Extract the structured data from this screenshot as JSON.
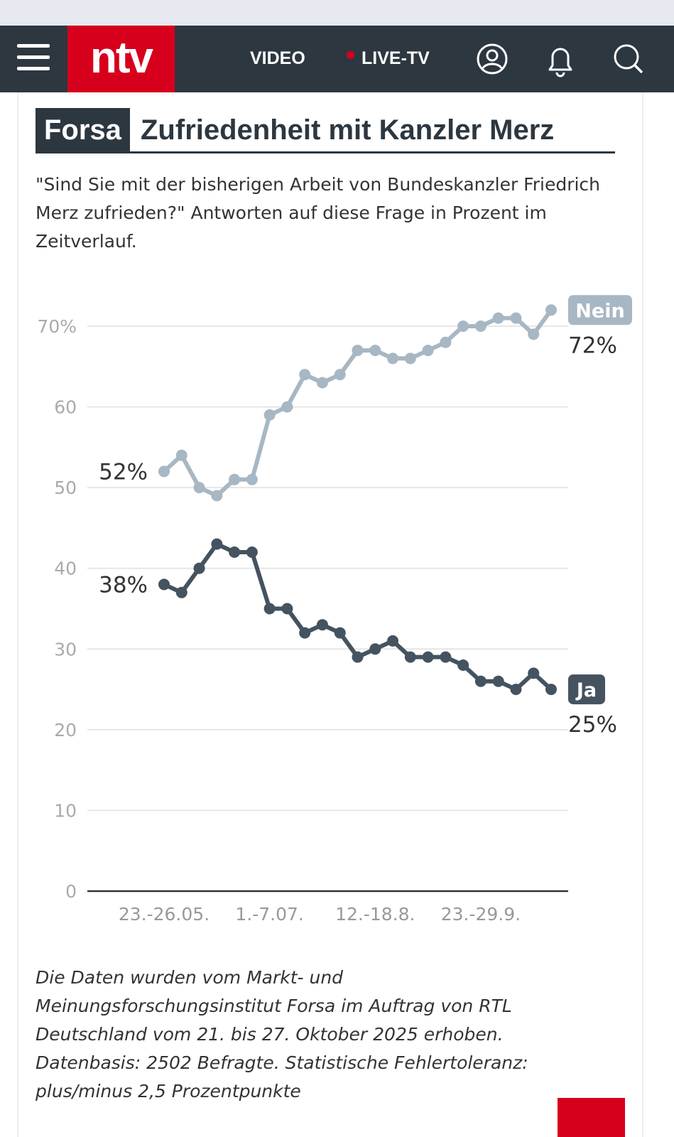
{
  "nav": {
    "logo": "ntv",
    "video": "VIDEO",
    "live": "LIVE-TV",
    "icons": [
      "menu-icon",
      "user-icon",
      "bell-icon",
      "search-icon"
    ]
  },
  "header": {
    "badge": "Forsa",
    "title": "Zufriedenheit mit Kanzler Merz"
  },
  "subtitle": "\"Sind Sie mit der bisherigen Arbeit von Bundeskanzler Friedrich Merz zufrieden?\" Antworten auf diese Frage in Prozent im Zeitverlauf.",
  "footnote": "Die Daten wurden vom Markt- und Meinungsforschungsinstitut Forsa im Auftrag von RTL Deutschland vom 21. bis 27. Oktober 2025 erhoben. Datenbasis: 2502 Befragte. Statistische Fehlertoleranz: plus/minus 2,5 Prozentpunkte",
  "chart_data": {
    "type": "line",
    "ylim": [
      0,
      72
    ],
    "yticks": [
      0,
      10,
      20,
      30,
      40,
      50,
      60,
      70
    ],
    "ytick_labels": [
      "0",
      "10",
      "20",
      "30",
      "40",
      "50",
      "60",
      "70%"
    ],
    "grid": true,
    "xtick_labels": [
      {
        "index": 0,
        "label": "23.-26.05."
      },
      {
        "index": 6,
        "label": "1.-7.07."
      },
      {
        "index": 12,
        "label": "12.-18.8."
      },
      {
        "index": 18,
        "label": "23.-29.9."
      }
    ],
    "series": [
      {
        "name": "Nein",
        "color": "#a7b7c3",
        "start_label": "52%",
        "end_label": "72%",
        "values": [
          52,
          54,
          50,
          49,
          51,
          51,
          59,
          60,
          64,
          63,
          64,
          67,
          67,
          66,
          66,
          67,
          68,
          70,
          70,
          71,
          71,
          69,
          72
        ]
      },
      {
        "name": "Ja",
        "color": "#44535f",
        "start_label": "38%",
        "end_label": "25%",
        "values": [
          38,
          37,
          40,
          43,
          42,
          42,
          35,
          35,
          32,
          33,
          32,
          29,
          30,
          31,
          29,
          29,
          29,
          28,
          26,
          26,
          25,
          27,
          25
        ]
      }
    ]
  }
}
